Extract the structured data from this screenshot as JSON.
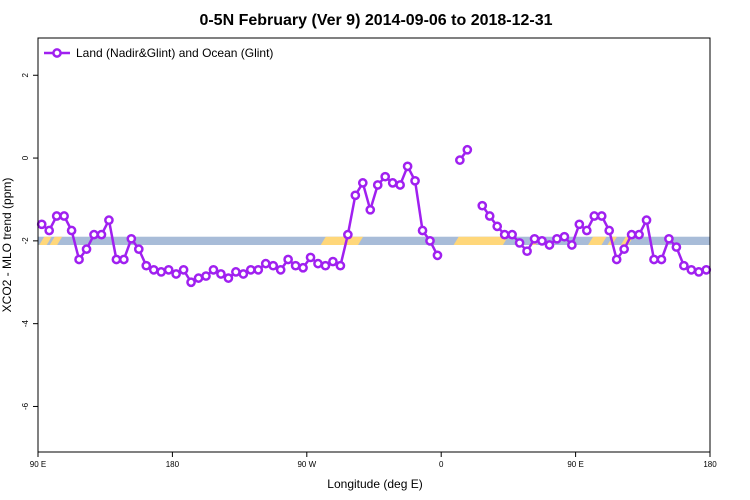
{
  "chart_data": {
    "type": "line",
    "title": "0-5N February (Ver 9)   2014-09-06 to 2018-12-31",
    "xlabel": "Longitude (deg E)",
    "ylabel": "XCO2 - MLO trend (ppm)",
    "xlim": [
      90,
      540
    ],
    "ylim": [
      -7.1,
      2.9
    ],
    "x_ticks": [
      {
        "value": 90,
        "label": "90 E"
      },
      {
        "value": 180,
        "label": "180"
      },
      {
        "value": 270,
        "label": "90 W"
      },
      {
        "value": 360,
        "label": "0"
      },
      {
        "value": 450,
        "label": "90 E"
      },
      {
        "value": 540,
        "label": "180"
      }
    ],
    "y_ticks": [
      {
        "value": 2,
        "label": "2"
      },
      {
        "value": 0,
        "label": "0"
      },
      {
        "value": -2,
        "label": "-2"
      },
      {
        "value": -4,
        "label": "-4"
      },
      {
        "value": -6,
        "label": "-6"
      }
    ],
    "grid": false,
    "legend": {
      "position": "top-left",
      "entries": [
        "Land (Nadir&Glint) and Ocean (Glint)"
      ]
    },
    "surface_band": {
      "y_range": [
        -2.1,
        -1.9
      ],
      "ocean_color": "#a8bcd8",
      "land_color": "#ffd77a",
      "land_segments": [
        [
          92.5,
          97.5
        ],
        [
          99.5,
          104.5
        ],
        [
          281,
          306
        ],
        [
          370,
          403
        ],
        [
          422,
          425
        ],
        [
          460,
          469
        ],
        [
          473,
          476
        ],
        [
          482,
          487
        ]
      ]
    },
    "series": [
      {
        "name": "Land (Nadir&Glint) and Ocean (Glint)",
        "color": "#a020f0",
        "segments": [
          [
            [
              92.5,
              -1.6
            ],
            [
              97.5,
              -1.75
            ],
            [
              102.5,
              -1.4
            ],
            [
              107.5,
              -1.4
            ],
            [
              112.5,
              -1.75
            ],
            [
              117.5,
              -2.45
            ],
            [
              122.5,
              -2.2
            ],
            [
              127.5,
              -1.85
            ],
            [
              132.5,
              -1.85
            ],
            [
              137.5,
              -1.5
            ],
            [
              142.5,
              -2.45
            ],
            [
              147.5,
              -2.45
            ],
            [
              152.5,
              -1.95
            ],
            [
              157.5,
              -2.2
            ],
            [
              162.5,
              -2.6
            ],
            [
              167.5,
              -2.7
            ],
            [
              172.5,
              -2.75
            ],
            [
              177.5,
              -2.7
            ],
            [
              182.5,
              -2.8
            ],
            [
              187.5,
              -2.7
            ],
            [
              192.5,
              -3.0
            ],
            [
              197.5,
              -2.9
            ],
            [
              202.5,
              -2.85
            ],
            [
              207.5,
              -2.7
            ],
            [
              212.5,
              -2.8
            ],
            [
              217.5,
              -2.9
            ],
            [
              222.5,
              -2.75
            ],
            [
              227.5,
              -2.8
            ],
            [
              232.5,
              -2.7
            ],
            [
              237.5,
              -2.7
            ],
            [
              242.5,
              -2.55
            ],
            [
              247.5,
              -2.6
            ],
            [
              252.5,
              -2.7
            ],
            [
              257.5,
              -2.45
            ],
            [
              262.5,
              -2.6
            ],
            [
              267.5,
              -2.65
            ],
            [
              272.5,
              -2.4
            ],
            [
              277.5,
              -2.55
            ],
            [
              282.5,
              -2.6
            ],
            [
              287.5,
              -2.5
            ],
            [
              292.5,
              -2.6
            ],
            [
              297.5,
              -1.85
            ],
            [
              302.5,
              -0.9
            ],
            [
              307.5,
              -0.6
            ],
            [
              312.5,
              -1.25
            ],
            [
              317.5,
              -0.65
            ],
            [
              322.5,
              -0.45
            ],
            [
              327.5,
              -0.6
            ],
            [
              332.5,
              -0.65
            ],
            [
              337.5,
              -0.2
            ],
            [
              342.5,
              -0.55
            ],
            [
              347.5,
              -1.75
            ],
            [
              352.5,
              -2.0
            ],
            [
              357.5,
              -2.35
            ]
          ],
          [
            [
              372.5,
              -0.05
            ],
            [
              377.5,
              0.2
            ]
          ],
          [
            [
              387.5,
              -1.15
            ],
            [
              392.5,
              -1.4
            ],
            [
              397.5,
              -1.65
            ],
            [
              402.5,
              -1.85
            ],
            [
              407.5,
              -1.85
            ],
            [
              412.5,
              -2.05
            ],
            [
              417.5,
              -2.25
            ],
            [
              422.5,
              -1.95
            ],
            [
              427.5,
              -2.0
            ],
            [
              432.5,
              -2.1
            ],
            [
              437.5,
              -1.95
            ],
            [
              442.5,
              -1.9
            ],
            [
              447.5,
              -2.1
            ],
            [
              452.5,
              -1.6
            ],
            [
              457.5,
              -1.75
            ],
            [
              462.5,
              -1.4
            ],
            [
              467.5,
              -1.4
            ],
            [
              472.5,
              -1.75
            ],
            [
              477.5,
              -2.45
            ],
            [
              482.5,
              -2.2
            ],
            [
              487.5,
              -1.85
            ],
            [
              492.5,
              -1.85
            ],
            [
              497.5,
              -1.5
            ],
            [
              502.5,
              -2.45
            ],
            [
              507.5,
              -2.45
            ],
            [
              512.5,
              -1.95
            ],
            [
              517.5,
              -2.15
            ],
            [
              522.5,
              -2.6
            ],
            [
              527.5,
              -2.7
            ],
            [
              532.5,
              -2.75
            ],
            [
              537.5,
              -2.7
            ]
          ]
        ]
      }
    ]
  }
}
